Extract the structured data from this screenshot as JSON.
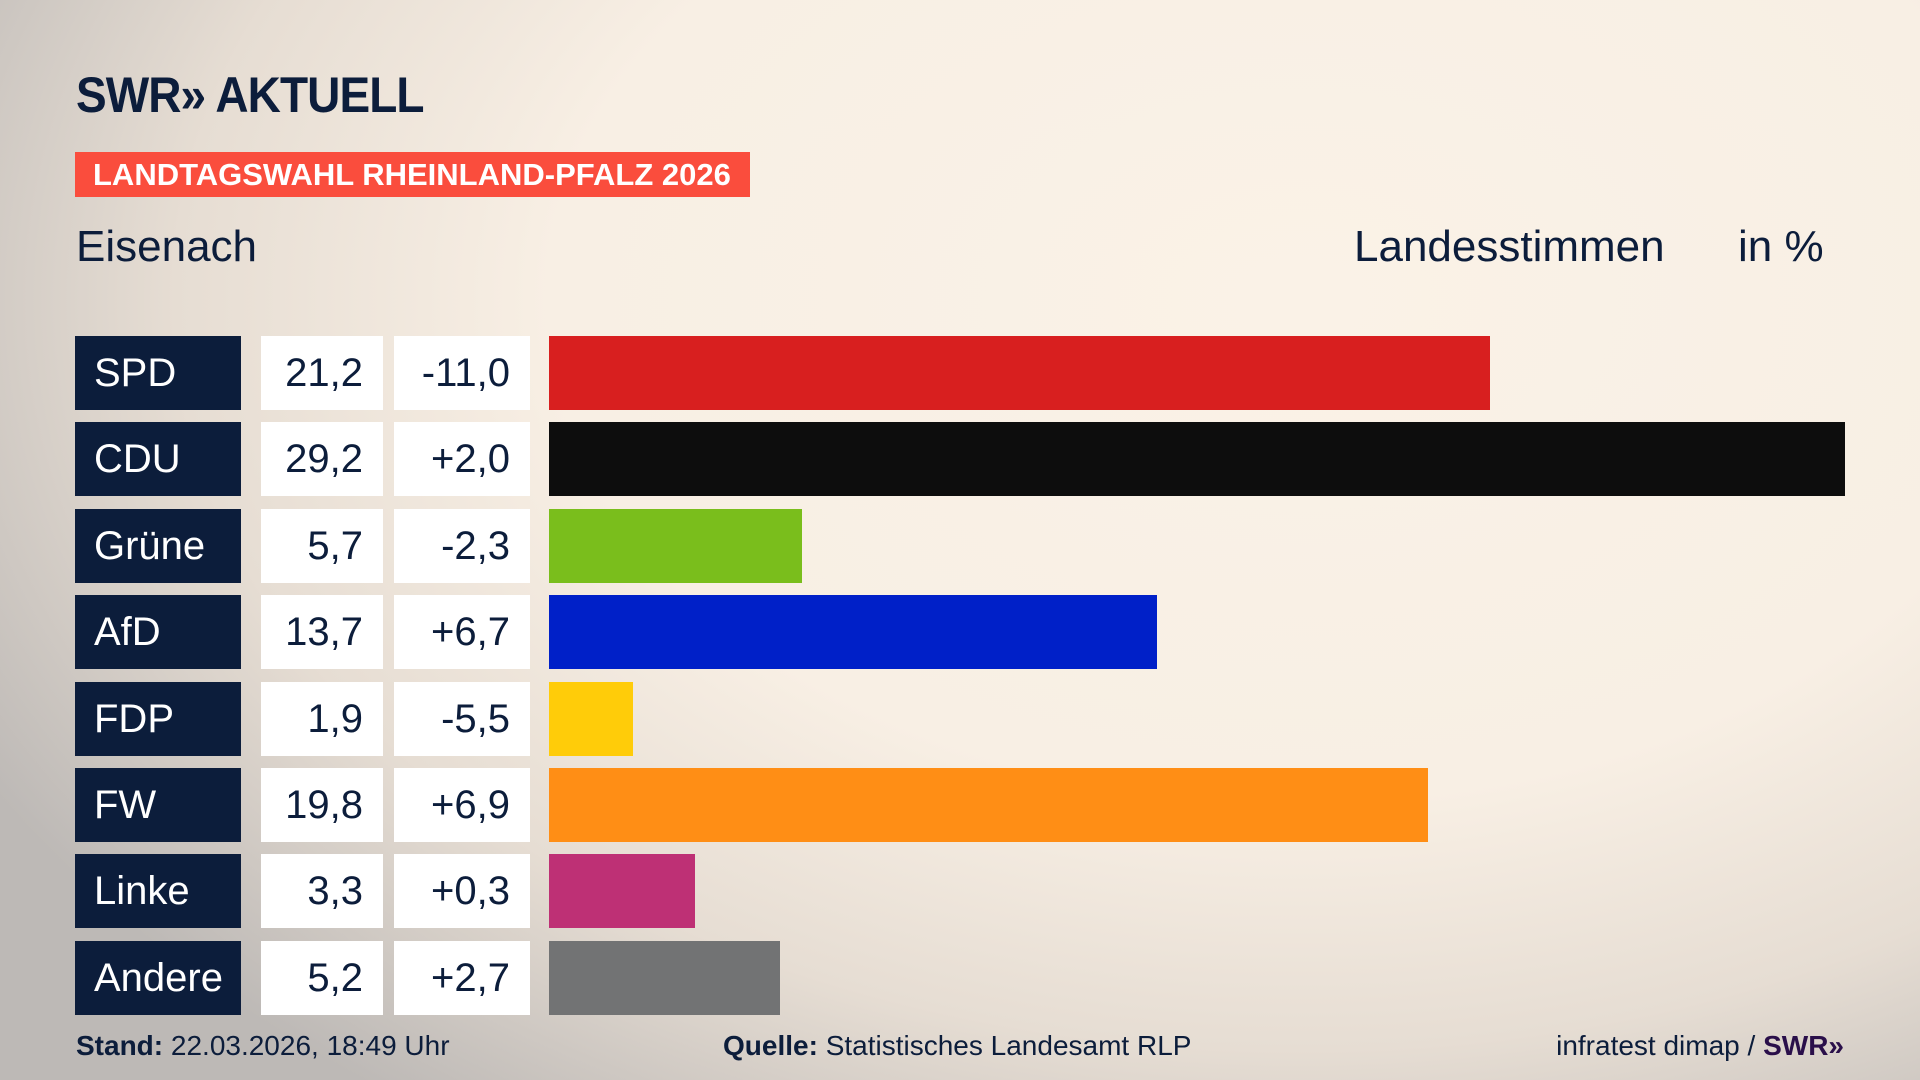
{
  "header": {
    "logo": "SWR» AKTUELL",
    "badge": "LANDTAGSWAHL RHEINLAND-PFALZ 2026",
    "region": "Eisenach",
    "measure": "Landesstimmen",
    "unit": "in %"
  },
  "chart_data": {
    "type": "bar",
    "orientation": "horizontal",
    "xlim": [
      0,
      29.2
    ],
    "categories": [
      "SPD",
      "CDU",
      "Grüne",
      "AfD",
      "FDP",
      "FW",
      "Linke",
      "Andere"
    ],
    "values": [
      21.2,
      29.2,
      5.7,
      13.7,
      1.9,
      19.8,
      3.3,
      5.2
    ],
    "value_labels": [
      "21,2",
      "29,2",
      "5,7",
      "13,7",
      "1,9",
      "19,8",
      "3,3",
      "5,2"
    ],
    "diff_labels": [
      "-11,0",
      "+2,0",
      "-2,3",
      "+6,7",
      "-5,5",
      "+6,9",
      "+0,3",
      "+2,7"
    ],
    "colors": [
      "#d81f1f",
      "#0d0d0d",
      "#7abe1c",
      "#0020c8",
      "#ffcc09",
      "#ff8e15",
      "#be3075",
      "#727374"
    ]
  },
  "footer": {
    "stand_label": "Stand:",
    "stand_value": "22.03.2026, 18:49 Uhr",
    "source_label": "Quelle:",
    "source_value": "Statistisches Landesamt RLP",
    "credit": "infratest dimap /",
    "credit_logo": "SWR»"
  }
}
